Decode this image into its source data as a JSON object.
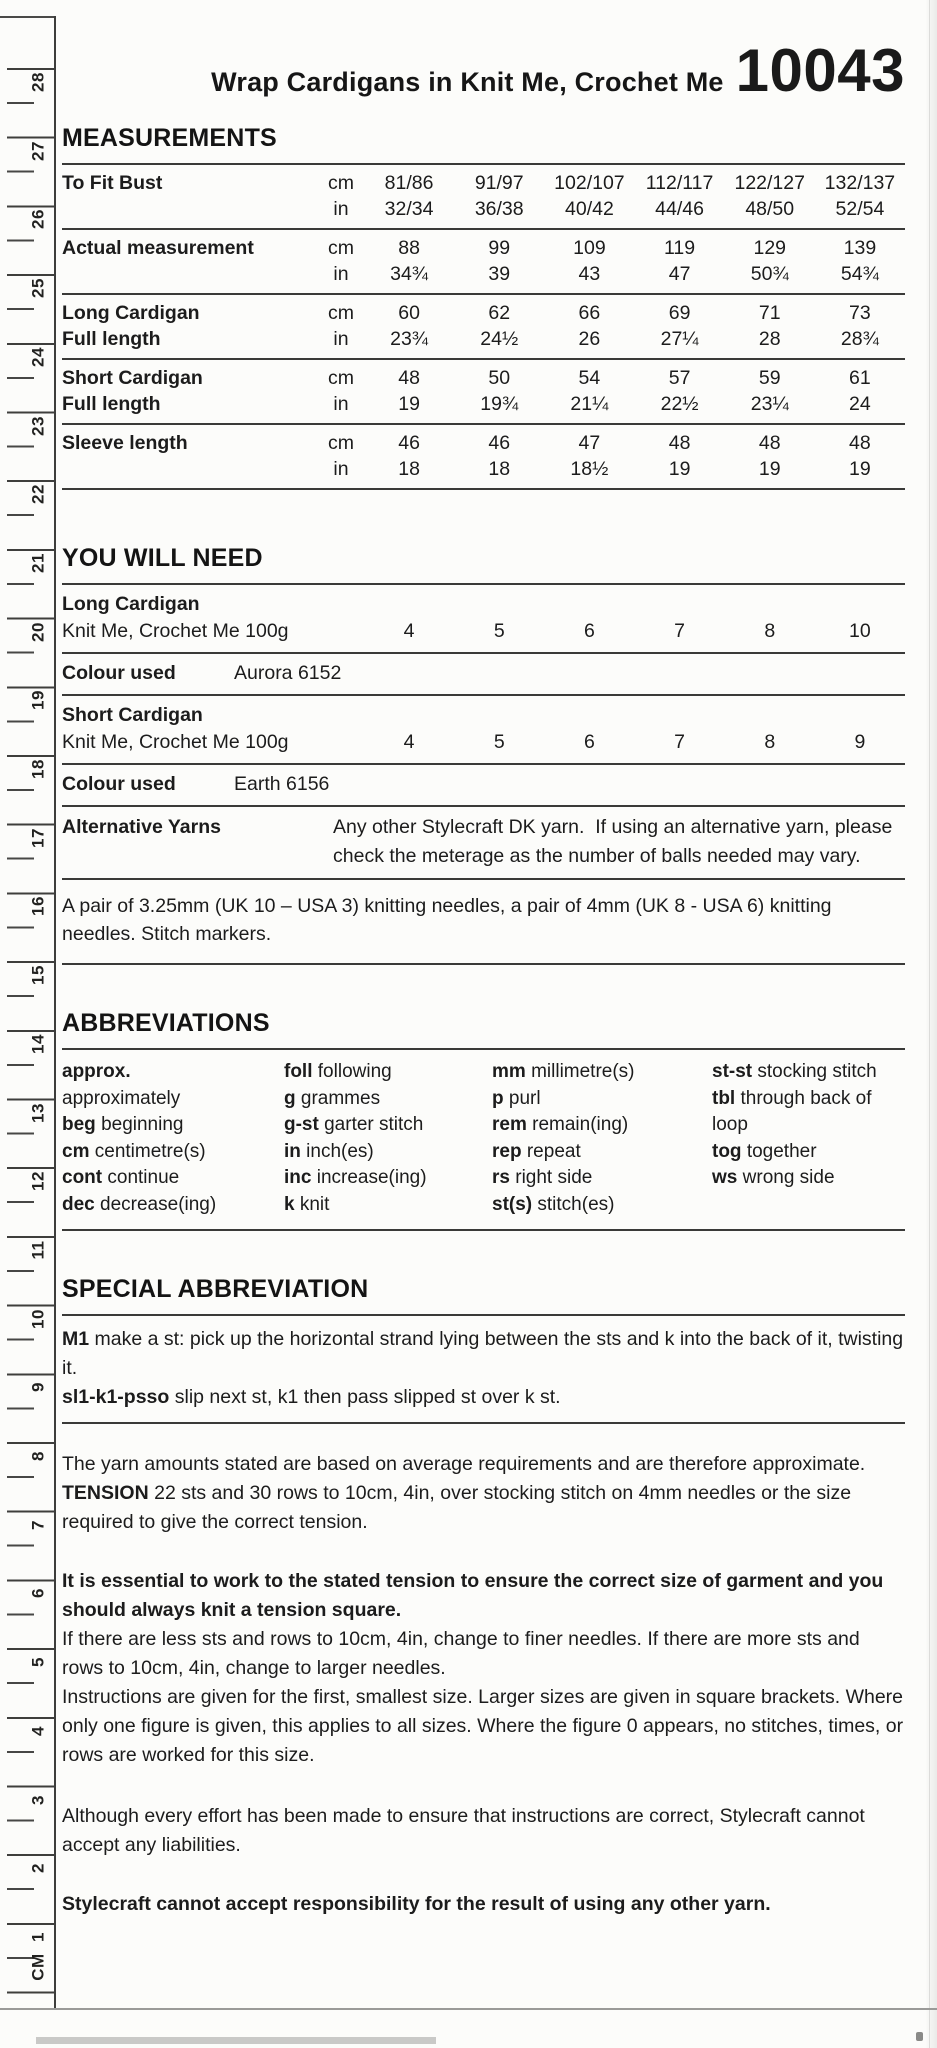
{
  "page": {
    "title": "Wrap Cardigans in Knit Me, Crochet Me",
    "pattern_number": "10043"
  },
  "ruler": {
    "unit_label": "CM",
    "numbers": [
      "28",
      "27",
      "26",
      "25",
      "24",
      "23",
      "22",
      "21",
      "20",
      "19",
      "18",
      "17",
      "16",
      "15",
      "14",
      "13",
      "12",
      "11",
      "10",
      "9",
      "8",
      "7",
      "6",
      "5",
      "4",
      "3",
      "2",
      "1"
    ]
  },
  "measurements": {
    "heading": "MEASUREMENTS",
    "unit_cm": "cm",
    "unit_in": "in",
    "rows": [
      {
        "label": "To Fit Bust",
        "label2": "",
        "cm": [
          "81/86",
          "91/97",
          "102/107",
          "112/117",
          "122/127",
          "132/137"
        ],
        "in": [
          "32/34",
          "36/38",
          "40/42",
          "44/46",
          "48/50",
          "52/54"
        ]
      },
      {
        "label": "Actual measurement",
        "label2": "",
        "cm": [
          "88",
          "99",
          "109",
          "119",
          "129",
          "139"
        ],
        "in": [
          "34¾",
          "39",
          "43",
          "47",
          "50¾",
          "54¾"
        ]
      },
      {
        "label": "Long Cardigan",
        "label2": "Full length",
        "cm": [
          "60",
          "62",
          "66",
          "69",
          "71",
          "73"
        ],
        "in": [
          "23¾",
          "24½",
          "26",
          "27¼",
          "28",
          "28¾"
        ]
      },
      {
        "label": "Short Cardigan",
        "label2": "Full length",
        "cm": [
          "48",
          "50",
          "54",
          "57",
          "59",
          "61"
        ],
        "in": [
          "19",
          "19¾",
          "21¼",
          "22½",
          "23¼",
          "24"
        ]
      },
      {
        "label": "Sleeve length",
        "label2": "",
        "cm": [
          "46",
          "46",
          "47",
          "48",
          "48",
          "48"
        ],
        "in": [
          "18",
          "18",
          "18½",
          "19",
          "19",
          "19"
        ]
      }
    ]
  },
  "you_will_need": {
    "heading": "YOU WILL NEED",
    "long_title": "Long Cardigan",
    "long_yarn": "Knit Me, Crochet Me 100g",
    "long_balls": [
      "4",
      "5",
      "6",
      "7",
      "8",
      "10"
    ],
    "colour_label": "Colour used",
    "long_colour": "Aurora 6152",
    "short_title": "Short Cardigan",
    "short_yarn": "Knit Me, Crochet Me 100g",
    "short_balls": [
      "4",
      "5",
      "6",
      "7",
      "8",
      "9"
    ],
    "short_colour": "Earth 6156",
    "alt_label": "Alternative Yarns",
    "alt_text": "Any other Stylecraft DK yarn.  If using an alternative yarn, please check the meterage as the number of balls needed may vary.",
    "needles_text": "A pair of 3.25mm (UK 10 – USA 3) knitting needles, a pair of 4mm (UK 8 - USA 6) knitting needles. Stitch markers."
  },
  "abbreviations": {
    "heading": "ABBREVIATIONS",
    "col1": [
      {
        "t": "approx.",
        "d": "approximately"
      },
      {
        "t": "beg",
        "d": "beginning"
      },
      {
        "t": "cm",
        "d": "centimetre(s)"
      },
      {
        "t": "cont",
        "d": "continue"
      },
      {
        "t": "dec",
        "d": "decrease(ing)"
      }
    ],
    "col2": [
      {
        "t": "foll",
        "d": "following"
      },
      {
        "t": "g",
        "d": "grammes"
      },
      {
        "t": "g-st",
        "d": "garter stitch"
      },
      {
        "t": "in",
        "d": "inch(es)"
      },
      {
        "t": "inc",
        "d": "increase(ing)"
      },
      {
        "t": "k",
        "d": "knit"
      }
    ],
    "col3": [
      {
        "t": "mm",
        "d": "millimetre(s)"
      },
      {
        "t": "p",
        "d": "purl"
      },
      {
        "t": "rem",
        "d": "remain(ing)"
      },
      {
        "t": "rep",
        "d": "repeat"
      },
      {
        "t": "rs",
        "d": "right side"
      },
      {
        "t": "st(s)",
        "d": "stitch(es)"
      }
    ],
    "col4": [
      {
        "t": "st-st",
        "d": "stocking stitch"
      },
      {
        "t": "tbl",
        "d": "through back of loop"
      },
      {
        "t": "tog",
        "d": "together"
      },
      {
        "t": "ws",
        "d": "wrong side"
      }
    ]
  },
  "special": {
    "heading": "SPECIAL ABBREVIATION",
    "m1_term": "M1",
    "m1_def": "make a st: pick up the horizontal strand lying between the sts and k into the back of it, twisting it.",
    "psso_term": "sl1-k1-psso",
    "psso_def": "slip next st, k1 then pass slipped st over k st."
  },
  "notes": {
    "yarn_amounts": "The yarn amounts stated are based on average requirements and are therefore approximate.",
    "tension_term": "TENSION",
    "tension_def": "22 sts and 30 rows to 10cm, 4in, over stocking stitch on 4mm needles or the size required to give the correct tension.",
    "essential_bold": "It is essential to work to the stated tension to ensure the correct size of garment and you should always knit a tension square.",
    "finer": "If there are less sts and rows to 10cm, 4in, change to finer needles. If there are more sts and rows to 10cm, 4in, change to larger needles.",
    "instructions": "Instructions are given for the first, smallest size. Larger sizes are given in square brackets. Where only one figure is given, this applies to all sizes. Where the figure 0 appears, no stitches, times, or rows are worked for this size.",
    "liability": "Although every effort has been made to ensure that instructions are correct, Stylecraft cannot accept any liabilities.",
    "responsibility": "Stylecraft cannot accept responsibility for the result of using any other yarn."
  }
}
